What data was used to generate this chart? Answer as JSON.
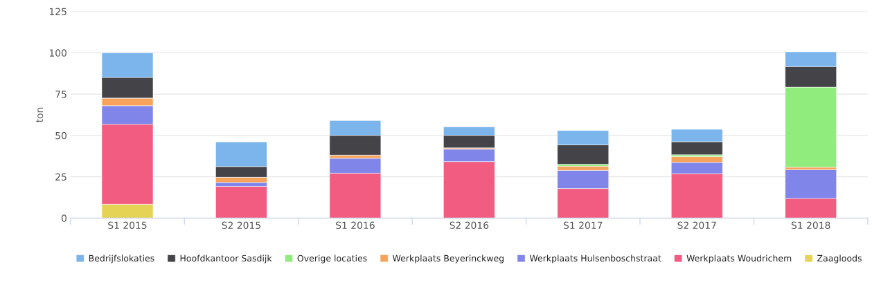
{
  "chart_data": {
    "type": "bar",
    "stacked": true,
    "ylabel": "ton",
    "categories": [
      "S1 2015",
      "S2 2015",
      "S1 2016",
      "S2 2016",
      "S1 2017",
      "S2 2017",
      "S1 2018"
    ],
    "series": [
      {
        "name": "Zaagloods",
        "color": "#e4d354",
        "values": [
          8.4,
          0,
          0,
          0,
          0,
          0,
          0
        ]
      },
      {
        "name": "Werkplaats Woudrichem",
        "color": "#f15c80",
        "values": [
          48.4,
          19.2,
          27.2,
          34.2,
          17.9,
          26.9,
          11.9
        ]
      },
      {
        "name": "Werkplaats Hulsenboschstraat",
        "color": "#8085e9",
        "values": [
          11.2,
          2.4,
          9.0,
          7.5,
          11.0,
          6.8,
          17.4
        ]
      },
      {
        "name": "Werkplaats Beyerinckweg",
        "color": "#f7a35c",
        "values": [
          4.6,
          3.1,
          1.9,
          0.8,
          2.5,
          3.5,
          1.5
        ]
      },
      {
        "name": "Overige locaties",
        "color": "#90ed7d",
        "values": [
          0,
          0,
          0,
          0,
          1.2,
          1.1,
          48.4
        ]
      },
      {
        "name": "Hoofdkantoor Sasdijk",
        "color": "#434348",
        "values": [
          12.5,
          6.5,
          12.0,
          7.6,
          11.7,
          7.9,
          12.5
        ]
      },
      {
        "name": "Bedrijfslokaties",
        "color": "#7cb5ec",
        "values": [
          14.9,
          14.9,
          8.9,
          5.1,
          8.7,
          7.5,
          8.9
        ]
      }
    ],
    "ylim": [
      0,
      125
    ],
    "yticks": [
      0,
      25,
      50,
      75,
      100,
      125
    ],
    "grid": "y",
    "legend": "bottom"
  }
}
